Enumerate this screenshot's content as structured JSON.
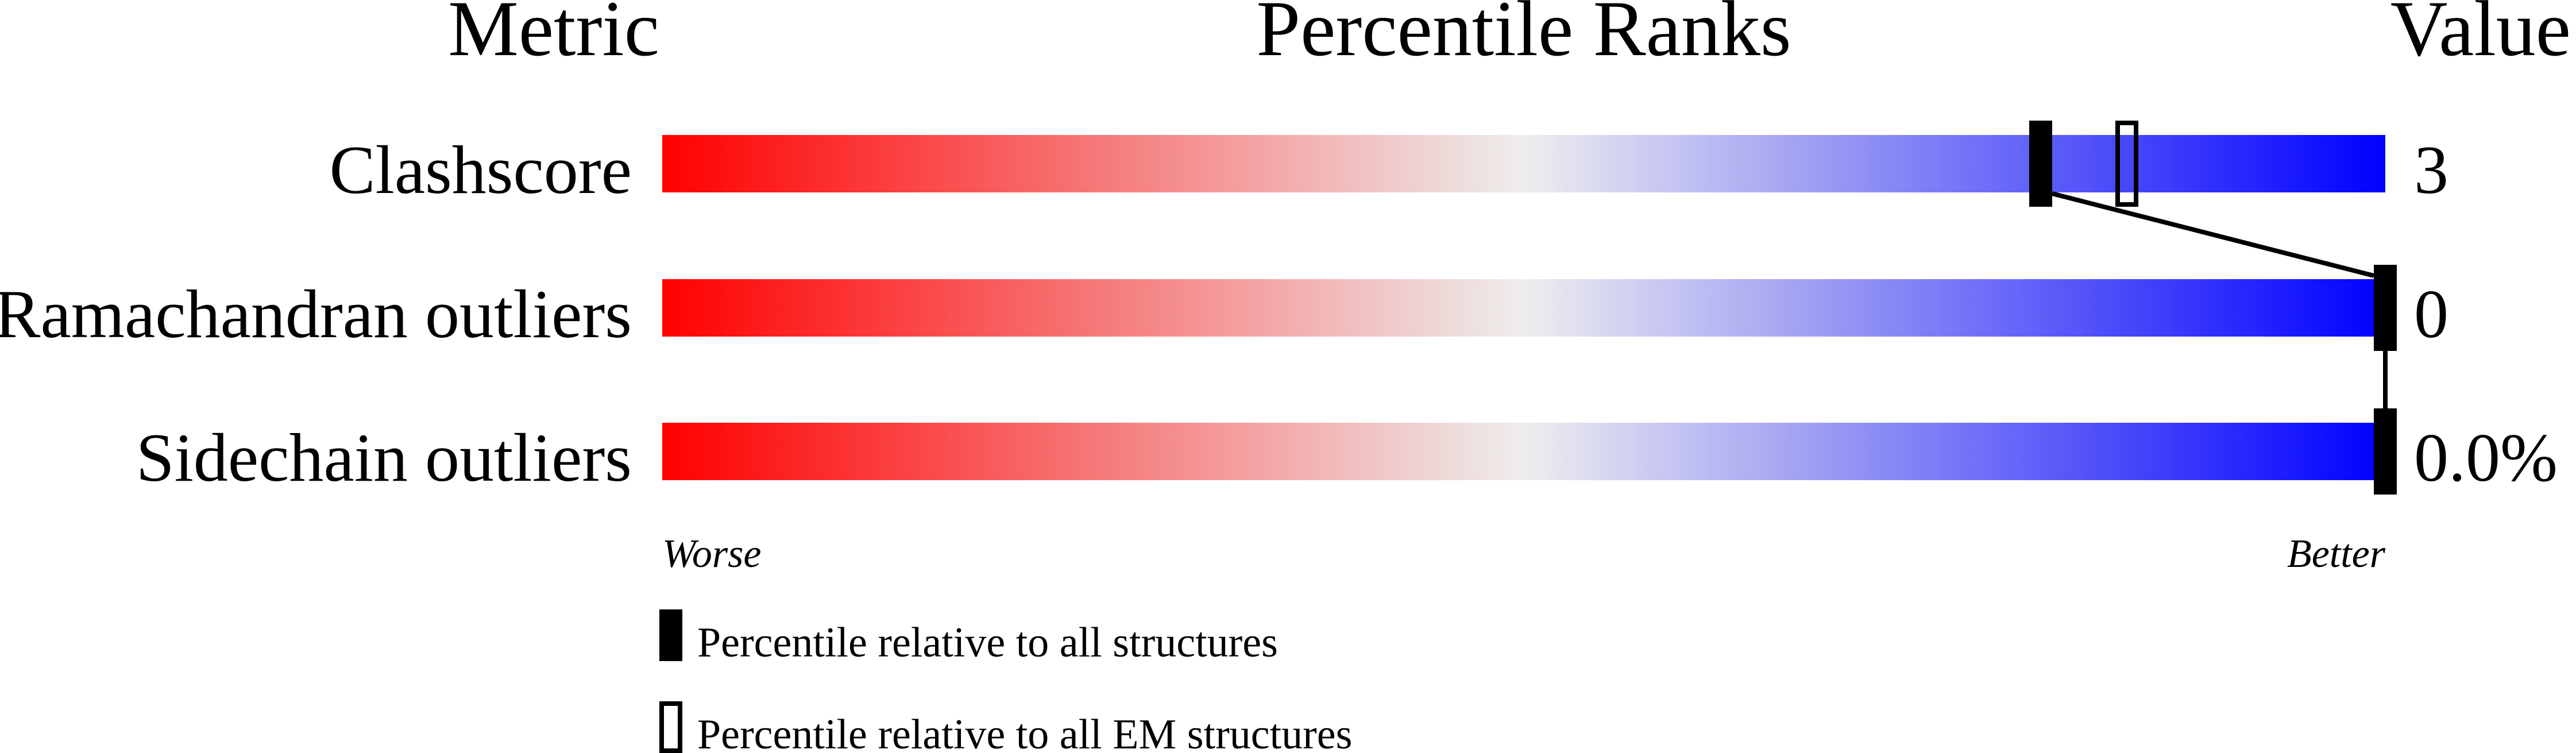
{
  "chart_data": {
    "type": "percentile-bar",
    "headers": {
      "metric": "Metric",
      "ranks": "Percentile Ranks",
      "value": "Value"
    },
    "xlim": [
      0,
      100
    ],
    "metrics": [
      {
        "label": "Clashscore",
        "value": "3",
        "percentile_all": 80,
        "percentile_em": 85
      },
      {
        "label": "Ramachandran outliers",
        "value": "0",
        "percentile_all": 100,
        "percentile_em": 100
      },
      {
        "label": "Sidechain outliers",
        "value": "0.0%",
        "percentile_all": 100,
        "percentile_em": 100
      }
    ],
    "axis": {
      "worse": "Worse",
      "better": "Better"
    },
    "legend": [
      {
        "label": "Percentile relative to all structures",
        "style": "filled"
      },
      {
        "label": "Percentile relative to all EM structures",
        "style": "outline"
      }
    ],
    "colors": {
      "worse": "#ff0000",
      "middle": "#eeeeee",
      "better": "#0000ff",
      "marker": "#000000"
    }
  }
}
